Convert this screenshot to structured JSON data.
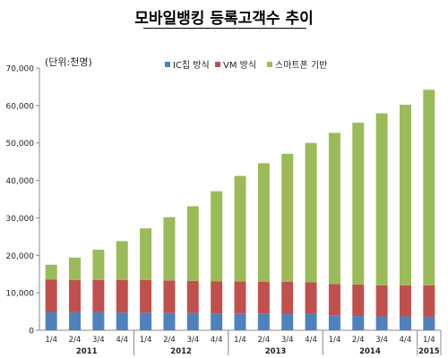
{
  "title": "모바일뱅킹 등록고객수 추이",
  "chart_data": {
    "type": "bar",
    "stacked": true,
    "unit_label": "(단위:천명)",
    "categories": [
      "1/4",
      "2/4",
      "3/4",
      "4/4",
      "1/4",
      "2/4",
      "3/4",
      "4/4",
      "1/4",
      "2/4",
      "3/4",
      "4/4",
      "1/4",
      "2/4",
      "3/4",
      "4/4",
      "1/4"
    ],
    "years": [
      {
        "label": "2011",
        "start": 0,
        "end": 3
      },
      {
        "label": "2012",
        "start": 4,
        "end": 7
      },
      {
        "label": "2013",
        "start": 8,
        "end": 11
      },
      {
        "label": "2014",
        "start": 12,
        "end": 15
      },
      {
        "label": "2015",
        "start": 16,
        "end": 16
      }
    ],
    "ylim": [
      0,
      70000
    ],
    "yticks": [
      0,
      10000,
      20000,
      30000,
      40000,
      50000,
      60000,
      70000
    ],
    "ytick_labels": [
      "0",
      "10,000",
      "20,000",
      "30,000",
      "40,000",
      "50,000",
      "60,000",
      "70,000"
    ],
    "legend_position": "top",
    "grid": false,
    "series": [
      {
        "name": "IC칩 방식",
        "color": "#4F81BD",
        "values": [
          4900,
          4800,
          4800,
          4700,
          4700,
          4600,
          4600,
          4500,
          4500,
          4500,
          4400,
          4400,
          4000,
          3800,
          3700,
          3700,
          3600
        ]
      },
      {
        "name": "VM 방식",
        "color": "#C0504D",
        "values": [
          8600,
          8600,
          8600,
          8700,
          8700,
          8700,
          8600,
          8600,
          8500,
          8400,
          8500,
          8400,
          8300,
          8400,
          8300,
          8300,
          8400
        ]
      },
      {
        "name": "스마트폰 기반",
        "color": "#9BBB59",
        "values": [
          4000,
          6000,
          8100,
          10400,
          13800,
          16900,
          19900,
          24000,
          28200,
          31700,
          34200,
          37200,
          40400,
          43200,
          45900,
          48200,
          52200
        ]
      }
    ]
  }
}
